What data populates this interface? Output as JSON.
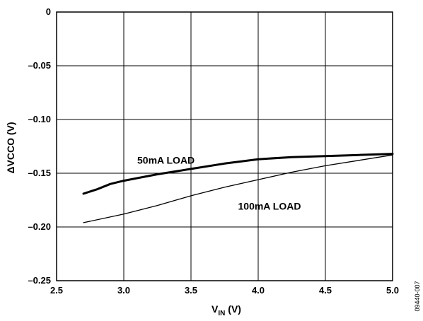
{
  "chart_data": {
    "type": "line",
    "xlabel": {
      "main": "V",
      "sub": "IN",
      "suffix": " (V)"
    },
    "ylabel": "ΔVCCO (V)",
    "xlim": [
      2.5,
      5.0
    ],
    "ylim": [
      -0.25,
      0
    ],
    "x_ticks": [
      2.5,
      3.0,
      3.5,
      4.0,
      4.5,
      5.0
    ],
    "x_tick_labels": [
      "2.5",
      "3.0",
      "3.5",
      "4.0",
      "4.5",
      "5.0"
    ],
    "y_ticks": [
      0,
      -0.05,
      -0.1,
      -0.15,
      -0.2,
      -0.25
    ],
    "y_tick_labels": [
      "0",
      "–0.05",
      "–0.10",
      "–0.15",
      "–0.20",
      "–0.25"
    ],
    "grid": true,
    "series": [
      {
        "name": "50mA LOAD",
        "line_width": "thick",
        "points": [
          [
            2.7,
            -0.169
          ],
          [
            2.8,
            -0.165
          ],
          [
            2.9,
            -0.16
          ],
          [
            3.0,
            -0.157
          ],
          [
            3.25,
            -0.151
          ],
          [
            3.5,
            -0.146
          ],
          [
            3.75,
            -0.141
          ],
          [
            4.0,
            -0.137
          ],
          [
            4.25,
            -0.135
          ],
          [
            4.5,
            -0.134
          ],
          [
            4.75,
            -0.133
          ],
          [
            5.0,
            -0.132
          ]
        ]
      },
      {
        "name": "100mA LOAD",
        "line_width": "thin",
        "points": [
          [
            2.7,
            -0.196
          ],
          [
            3.0,
            -0.188
          ],
          [
            3.25,
            -0.18
          ],
          [
            3.5,
            -0.171
          ],
          [
            3.75,
            -0.163
          ],
          [
            4.0,
            -0.156
          ],
          [
            4.25,
            -0.149
          ],
          [
            4.5,
            -0.143
          ],
          [
            4.75,
            -0.138
          ],
          [
            5.0,
            -0.133
          ]
        ]
      }
    ],
    "annotations": [
      {
        "text": "50mA LOAD",
        "x": 3.1,
        "y": -0.141
      },
      {
        "text": "100mA LOAD",
        "x": 3.85,
        "y": -0.184
      }
    ],
    "figure_id": "09440-007"
  }
}
